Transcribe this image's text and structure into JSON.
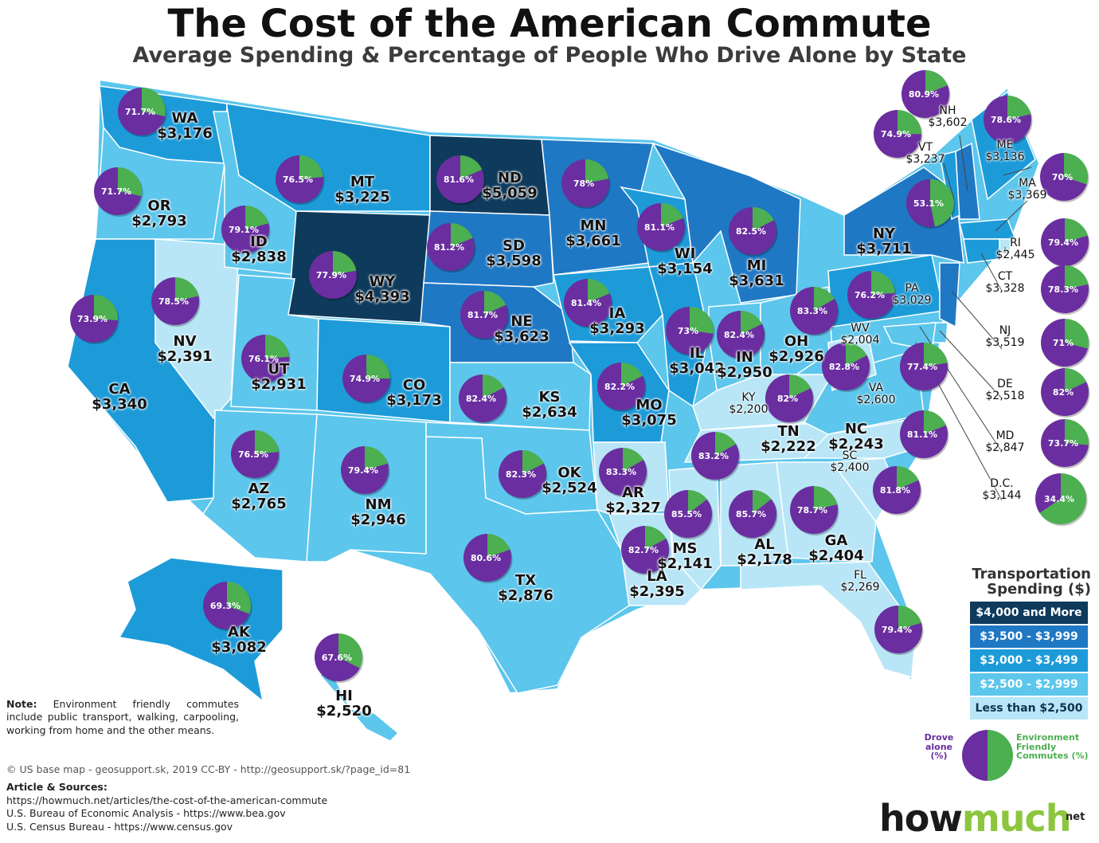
{
  "title": "The Cost of the American Commute",
  "subtitle": "Average Spending & Percentage of People Who Drive Alone by State",
  "colors": {
    "tier1": "#0e3a5c",
    "tier2": "#1f78c4",
    "tier3": "#1d9bd9",
    "tier4": "#5cc6ec",
    "tier5": "#b8e6f7",
    "drove_alone": "#6a2ea0",
    "env_friendly": "#4caf50"
  },
  "legend": {
    "title": "Transportation Spending ($)",
    "items": [
      {
        "label": "$4,000 and More"
      },
      {
        "label": "$3,500 - $3,999"
      },
      {
        "label": "$3,000 - $3,499"
      },
      {
        "label": "$2,500 - $2,999"
      },
      {
        "label": "Less than $2,500"
      }
    ],
    "pie_left_label": "Drove alone (%)",
    "pie_right_label": "Environment Friendly Commutes (%)"
  },
  "states": [
    {
      "abbr": "WA",
      "spending": "$3,176",
      "drove_alone": "71.7%",
      "pct": 71.7
    },
    {
      "abbr": "OR",
      "spending": "$2,793",
      "drove_alone": "71.7%",
      "pct": 71.7
    },
    {
      "abbr": "CA",
      "spending": "$3,340",
      "drove_alone": "73.9%",
      "pct": 73.9
    },
    {
      "abbr": "NV",
      "spending": "$2,391",
      "drove_alone": "78.5%",
      "pct": 78.5
    },
    {
      "abbr": "ID",
      "spending": "$2,838",
      "drove_alone": "79.1%",
      "pct": 79.1
    },
    {
      "abbr": "MT",
      "spending": "$3,225",
      "drove_alone": "76.5%",
      "pct": 76.5
    },
    {
      "abbr": "WY",
      "spending": "$4,393",
      "drove_alone": "77.9%",
      "pct": 77.9
    },
    {
      "abbr": "UT",
      "spending": "$2,931",
      "drove_alone": "76.1%",
      "pct": 76.1
    },
    {
      "abbr": "AZ",
      "spending": "$2,765",
      "drove_alone": "76.5%",
      "pct": 76.5
    },
    {
      "abbr": "CO",
      "spending": "$3,173",
      "drove_alone": "74.9%",
      "pct": 74.9
    },
    {
      "abbr": "NM",
      "spending": "$2,946",
      "drove_alone": "79.4%",
      "pct": 79.4
    },
    {
      "abbr": "ND",
      "spending": "$5,059",
      "drove_alone": "81.6%",
      "pct": 81.6
    },
    {
      "abbr": "SD",
      "spending": "$3,598",
      "drove_alone": "81.2%",
      "pct": 81.2
    },
    {
      "abbr": "NE",
      "spending": "$3,623",
      "drove_alone": "81.7%",
      "pct": 81.7
    },
    {
      "abbr": "KS",
      "spending": "$2,634",
      "drove_alone": "82.4%",
      "pct": 82.4
    },
    {
      "abbr": "OK",
      "spending": "$2,524",
      "drove_alone": "82.3%",
      "pct": 82.3
    },
    {
      "abbr": "TX",
      "spending": "$2,876",
      "drove_alone": "80.6%",
      "pct": 80.6
    },
    {
      "abbr": "MN",
      "spending": "$3,661",
      "drove_alone": "78%",
      "pct": 78
    },
    {
      "abbr": "IA",
      "spending": "$3,293",
      "drove_alone": "81.4%",
      "pct": 81.4
    },
    {
      "abbr": "MO",
      "spending": "$3,075",
      "drove_alone": "82.2%",
      "pct": 82.2
    },
    {
      "abbr": "AR",
      "spending": "$2,327",
      "drove_alone": "83.3%",
      "pct": 83.3
    },
    {
      "abbr": "LA",
      "spending": "$2,395",
      "drove_alone": "82.7%",
      "pct": 82.7
    },
    {
      "abbr": "WI",
      "spending": "$3,154",
      "drove_alone": "81.1%",
      "pct": 81.1
    },
    {
      "abbr": "IL",
      "spending": "$3,042",
      "drove_alone": "73%",
      "pct": 73
    },
    {
      "abbr": "MI",
      "spending": "$3,631",
      "drove_alone": "82.5%",
      "pct": 82.5
    },
    {
      "abbr": "IN",
      "spending": "$2,950",
      "drove_alone": "82.4%",
      "pct": 82.4
    },
    {
      "abbr": "OH",
      "spending": "$2,926",
      "drove_alone": "83.3%",
      "pct": 83.3
    },
    {
      "abbr": "KY",
      "spending": "$2,200",
      "drove_alone": "82%",
      "pct": 82
    },
    {
      "abbr": "TN",
      "spending": "$2,222",
      "drove_alone": "83.2%",
      "pct": 83.2
    },
    {
      "abbr": "MS",
      "spending": "$2,141",
      "drove_alone": "85.5%",
      "pct": 85.5
    },
    {
      "abbr": "AL",
      "spending": "$2,178",
      "drove_alone": "85.7%",
      "pct": 85.7
    },
    {
      "abbr": "GA",
      "spending": "$2,404",
      "drove_alone": "78.7%",
      "pct": 78.7
    },
    {
      "abbr": "FL",
      "spending": "$2,269",
      "drove_alone": "79.4%",
      "pct": 79.4
    },
    {
      "abbr": "SC",
      "spending": "$2,400",
      "drove_alone": "81.8%",
      "pct": 81.8
    },
    {
      "abbr": "NC",
      "spending": "$2,243",
      "drove_alone": "81.1%",
      "pct": 81.1
    },
    {
      "abbr": "VA",
      "spending": "$2,600",
      "drove_alone": "77.4%",
      "pct": 77.4
    },
    {
      "abbr": "WV",
      "spending": "$2,004",
      "drove_alone": "82.8%",
      "pct": 82.8
    },
    {
      "abbr": "PA",
      "spending": "$3,029",
      "drove_alone": "76.2%",
      "pct": 76.2
    },
    {
      "abbr": "NY",
      "spending": "$3,711",
      "drove_alone": "53.1%",
      "pct": 53.1
    },
    {
      "abbr": "VT",
      "spending": "$3,237",
      "drove_alone": "74.9%",
      "pct": 74.9
    },
    {
      "abbr": "NH",
      "spending": "$3,602",
      "drove_alone": "80.9%",
      "pct": 80.9
    },
    {
      "abbr": "ME",
      "spending": "$3,136",
      "drove_alone": "78.6%",
      "pct": 78.6
    },
    {
      "abbr": "MA",
      "spending": "$3,369",
      "drove_alone": "70%",
      "pct": 70
    },
    {
      "abbr": "RI",
      "spending": "$2,445",
      "drove_alone": "79.4%",
      "pct": 79.4
    },
    {
      "abbr": "CT",
      "spending": "$3,328",
      "drove_alone": "78.3%",
      "pct": 78.3
    },
    {
      "abbr": "NJ",
      "spending": "$3,519",
      "drove_alone": "71%",
      "pct": 71
    },
    {
      "abbr": "DE",
      "spending": "$2,518",
      "drove_alone": "82%",
      "pct": 82
    },
    {
      "abbr": "MD",
      "spending": "$2,847",
      "drove_alone": "73.7%",
      "pct": 73.7
    },
    {
      "abbr": "D.C.",
      "spending": "$3,144",
      "drove_alone": "34.4%",
      "pct": 34.4
    },
    {
      "abbr": "AK",
      "spending": "$3,082",
      "drove_alone": "69.3%",
      "pct": 69.3
    },
    {
      "abbr": "HI",
      "spending": "$2,520",
      "drove_alone": "67.6%",
      "pct": 67.6
    }
  ],
  "note": {
    "label": "Note:",
    "text": "Environment friendly commutes include public transport, walking, carpooling, working from home and the other means."
  },
  "credit": "© US base map - geosupport.sk, 2019 CC-BY - http://geosupport.sk/?page_id=81",
  "sources": {
    "heading": "Article & Sources:",
    "lines": [
      "https://howmuch.net/articles/the-cost-of-the-american-commute",
      "U.S. Bureau of Economic Analysis - https://www.bea.gov",
      "U.S. Census Bureau - https://www.census.gov"
    ]
  },
  "brand": {
    "how": "how",
    "much": "much",
    "net": "net"
  }
}
